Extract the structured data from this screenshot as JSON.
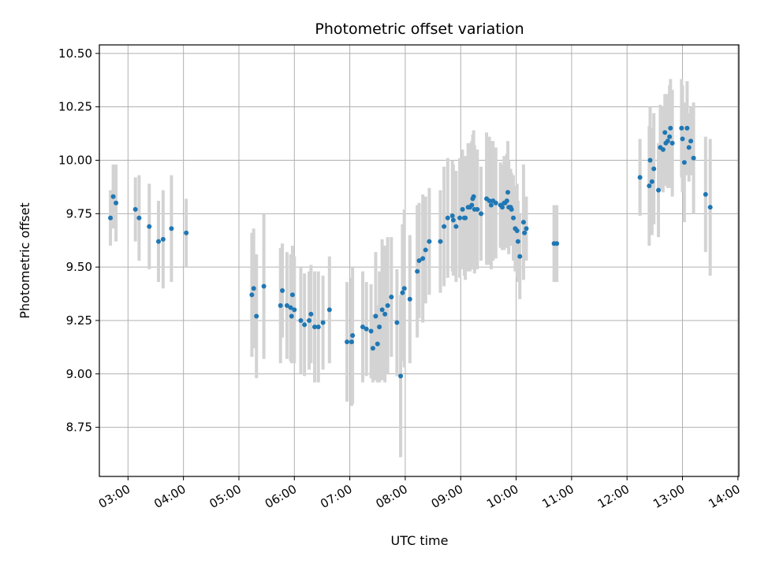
{
  "chart_data": {
    "type": "scatter",
    "title": "Photometric offset variation",
    "xlabel": "UTC time",
    "ylabel": "Photometric offset",
    "x_axis": "time-of-day",
    "xlim": [
      "02:29",
      "14:01"
    ],
    "ylim": [
      8.52,
      10.54
    ],
    "x_ticks": [
      "03:00",
      "04:00",
      "05:00",
      "06:00",
      "07:00",
      "08:00",
      "09:00",
      "10:00",
      "11:00",
      "12:00",
      "13:00",
      "14:00"
    ],
    "y_ticks": [
      "8.75",
      "9.00",
      "9.25",
      "9.50",
      "9.75",
      "10.00",
      "10.25",
      "10.50"
    ],
    "grid": true,
    "marker_color": "#1f77b4",
    "errorbar_color": "#d3d3d3",
    "series": [
      {
        "points": [
          {
            "t": "02:41",
            "y": 9.73,
            "err": 0.13
          },
          {
            "t": "02:44",
            "y": 9.83,
            "err": 0.15
          },
          {
            "t": "02:47",
            "y": 9.8,
            "err": 0.18
          },
          {
            "t": "03:08",
            "y": 9.77,
            "err": 0.15
          },
          {
            "t": "03:12",
            "y": 9.73,
            "err": 0.2
          },
          {
            "t": "03:23",
            "y": 9.69,
            "err": 0.2
          },
          {
            "t": "03:33",
            "y": 9.62,
            "err": 0.19
          },
          {
            "t": "03:38",
            "y": 9.63,
            "err": 0.23
          },
          {
            "t": "03:47",
            "y": 9.68,
            "err": 0.25
          },
          {
            "t": "04:03",
            "y": 9.66,
            "err": 0.16
          },
          {
            "t": "05:14",
            "y": 9.37,
            "err": 0.29
          },
          {
            "t": "05:16",
            "y": 9.4,
            "err": 0.28
          },
          {
            "t": "05:19",
            "y": 9.27,
            "err": 0.29
          },
          {
            "t": "05:27",
            "y": 9.41,
            "err": 0.34
          },
          {
            "t": "05:45",
            "y": 9.32,
            "err": 0.27
          },
          {
            "t": "05:47",
            "y": 9.39,
            "err": 0.22
          },
          {
            "t": "05:52",
            "y": 9.32,
            "err": 0.25
          },
          {
            "t": "05:56",
            "y": 9.31,
            "err": 0.25
          },
          {
            "t": "05:57",
            "y": 9.27,
            "err": 0.22
          },
          {
            "t": "05:58",
            "y": 9.37,
            "err": 0.23
          },
          {
            "t": "06:00",
            "y": 9.3,
            "err": 0.25
          },
          {
            "t": "06:07",
            "y": 9.25,
            "err": 0.25
          },
          {
            "t": "06:11",
            "y": 9.23,
            "err": 0.24
          },
          {
            "t": "06:16",
            "y": 9.25,
            "err": 0.23
          },
          {
            "t": "06:18",
            "y": 9.28,
            "err": 0.23
          },
          {
            "t": "06:22",
            "y": 9.22,
            "err": 0.26
          },
          {
            "t": "06:26",
            "y": 9.22,
            "err": 0.26
          },
          {
            "t": "06:31",
            "y": 9.24,
            "err": 0.22
          },
          {
            "t": "06:38",
            "y": 9.3,
            "err": 0.25
          },
          {
            "t": "06:57",
            "y": 9.15,
            "err": 0.28
          },
          {
            "t": "07:02",
            "y": 9.15,
            "err": 0.3
          },
          {
            "t": "07:03",
            "y": 9.18,
            "err": 0.32
          },
          {
            "t": "07:14",
            "y": 9.22,
            "err": 0.26
          },
          {
            "t": "07:18",
            "y": 9.21,
            "err": 0.22
          },
          {
            "t": "07:23",
            "y": 9.2,
            "err": 0.22
          },
          {
            "t": "07:25",
            "y": 9.12,
            "err": 0.16
          },
          {
            "t": "07:28",
            "y": 9.27,
            "err": 0.3
          },
          {
            "t": "07:30",
            "y": 9.14,
            "err": 0.18
          },
          {
            "t": "07:32",
            "y": 9.22,
            "err": 0.26
          },
          {
            "t": "07:35",
            "y": 9.3,
            "err": 0.33
          },
          {
            "t": "07:38",
            "y": 9.28,
            "err": 0.32
          },
          {
            "t": "07:41",
            "y": 9.32,
            "err": 0.32
          },
          {
            "t": "07:45",
            "y": 9.36,
            "err": 0.28
          },
          {
            "t": "07:51",
            "y": 9.24,
            "err": 0.25
          },
          {
            "t": "07:55",
            "y": 8.99,
            "err": 0.38
          },
          {
            "t": "07:57",
            "y": 9.38,
            "err": 0.32
          },
          {
            "t": "07:59",
            "y": 9.4,
            "err": 0.37
          },
          {
            "t": "08:05",
            "y": 9.35,
            "err": 0.3
          },
          {
            "t": "08:13",
            "y": 9.48,
            "err": 0.31
          },
          {
            "t": "08:15",
            "y": 9.53,
            "err": 0.27
          },
          {
            "t": "08:19",
            "y": 9.54,
            "err": 0.3
          },
          {
            "t": "08:22",
            "y": 9.58,
            "err": 0.25
          },
          {
            "t": "08:26",
            "y": 9.62,
            "err": 0.25
          },
          {
            "t": "08:38",
            "y": 9.62,
            "err": 0.24
          },
          {
            "t": "08:42",
            "y": 9.69,
            "err": 0.28
          },
          {
            "t": "08:46",
            "y": 9.73,
            "err": 0.28
          },
          {
            "t": "08:51",
            "y": 9.74,
            "err": 0.26
          },
          {
            "t": "08:52",
            "y": 9.72,
            "err": 0.26
          },
          {
            "t": "08:55",
            "y": 9.69,
            "err": 0.26
          },
          {
            "t": "08:59",
            "y": 9.73,
            "err": 0.28
          },
          {
            "t": "09:02",
            "y": 9.77,
            "err": 0.28
          },
          {
            "t": "09:04",
            "y": 9.73,
            "err": 0.27
          },
          {
            "t": "09:05",
            "y": 9.73,
            "err": 0.29
          },
          {
            "t": "09:08",
            "y": 9.78,
            "err": 0.3
          },
          {
            "t": "09:10",
            "y": 9.78,
            "err": 0.3
          },
          {
            "t": "09:12",
            "y": 9.79,
            "err": 0.3
          },
          {
            "t": "09:13",
            "y": 9.82,
            "err": 0.3
          },
          {
            "t": "09:14",
            "y": 9.83,
            "err": 0.31
          },
          {
            "t": "09:15",
            "y": 9.77,
            "err": 0.3
          },
          {
            "t": "09:18",
            "y": 9.77,
            "err": 0.28
          },
          {
            "t": "09:22",
            "y": 9.75,
            "err": 0.22
          },
          {
            "t": "09:28",
            "y": 9.82,
            "err": 0.31
          },
          {
            "t": "09:31",
            "y": 9.81,
            "err": 0.3
          },
          {
            "t": "09:33",
            "y": 9.79,
            "err": 0.3
          },
          {
            "t": "09:35",
            "y": 9.81,
            "err": 0.28
          },
          {
            "t": "09:38",
            "y": 9.8,
            "err": 0.26
          },
          {
            "t": "09:43",
            "y": 9.79,
            "err": 0.2
          },
          {
            "t": "09:45",
            "y": 9.78,
            "err": 0.2
          },
          {
            "t": "09:47",
            "y": 9.8,
            "err": 0.22
          },
          {
            "t": "09:48",
            "y": 9.8,
            "err": 0.2
          },
          {
            "t": "09:50",
            "y": 9.81,
            "err": 0.22
          },
          {
            "t": "09:51",
            "y": 9.85,
            "err": 0.24
          },
          {
            "t": "09:52",
            "y": 9.78,
            "err": 0.22
          },
          {
            "t": "09:54",
            "y": 9.78,
            "err": 0.18
          },
          {
            "t": "09:55",
            "y": 9.77,
            "err": 0.17
          },
          {
            "t": "09:57",
            "y": 9.73,
            "err": 0.2
          },
          {
            "t": "09:59",
            "y": 9.68,
            "err": 0.2
          },
          {
            "t": "10:01",
            "y": 9.67,
            "err": 0.22
          },
          {
            "t": "10:02",
            "y": 9.62,
            "err": 0.19
          },
          {
            "t": "10:04",
            "y": 9.55,
            "err": 0.2
          },
          {
            "t": "10:08",
            "y": 9.71,
            "err": 0.27
          },
          {
            "t": "10:09",
            "y": 9.66,
            "err": 0.12
          },
          {
            "t": "10:11",
            "y": 9.68,
            "err": 0.15
          },
          {
            "t": "10:41",
            "y": 9.61,
            "err": 0.18
          },
          {
            "t": "10:44",
            "y": 9.61,
            "err": 0.18
          },
          {
            "t": "12:14",
            "y": 9.92,
            "err": 0.18
          },
          {
            "t": "12:24",
            "y": 9.88,
            "err": 0.28
          },
          {
            "t": "12:25",
            "y": 10.0,
            "err": 0.25
          },
          {
            "t": "12:27",
            "y": 9.9,
            "err": 0.25
          },
          {
            "t": "12:29",
            "y": 9.96,
            "err": 0.26
          },
          {
            "t": "12:34",
            "y": 9.86,
            "err": 0.22
          },
          {
            "t": "12:36",
            "y": 10.06,
            "err": 0.2
          },
          {
            "t": "12:39",
            "y": 10.05,
            "err": 0.2
          },
          {
            "t": "12:41",
            "y": 10.13,
            "err": 0.18
          },
          {
            "t": "12:42",
            "y": 10.08,
            "err": 0.2
          },
          {
            "t": "12:44",
            "y": 10.09,
            "err": 0.22
          },
          {
            "t": "12:46",
            "y": 10.11,
            "err": 0.24
          },
          {
            "t": "12:47",
            "y": 10.15,
            "err": 0.23
          },
          {
            "t": "12:49",
            "y": 10.08,
            "err": 0.25
          },
          {
            "t": "12:59",
            "y": 10.15,
            "err": 0.23
          },
          {
            "t": "13:00",
            "y": 10.1,
            "err": 0.25
          },
          {
            "t": "13:02",
            "y": 9.99,
            "err": 0.28
          },
          {
            "t": "13:05",
            "y": 10.15,
            "err": 0.22
          },
          {
            "t": "13:07",
            "y": 10.06,
            "err": 0.16
          },
          {
            "t": "13:09",
            "y": 10.09,
            "err": 0.16
          },
          {
            "t": "13:12",
            "y": 10.01,
            "err": 0.26
          },
          {
            "t": "13:25",
            "y": 9.84,
            "err": 0.27
          },
          {
            "t": "13:30",
            "y": 9.78,
            "err": 0.32
          }
        ]
      }
    ]
  }
}
